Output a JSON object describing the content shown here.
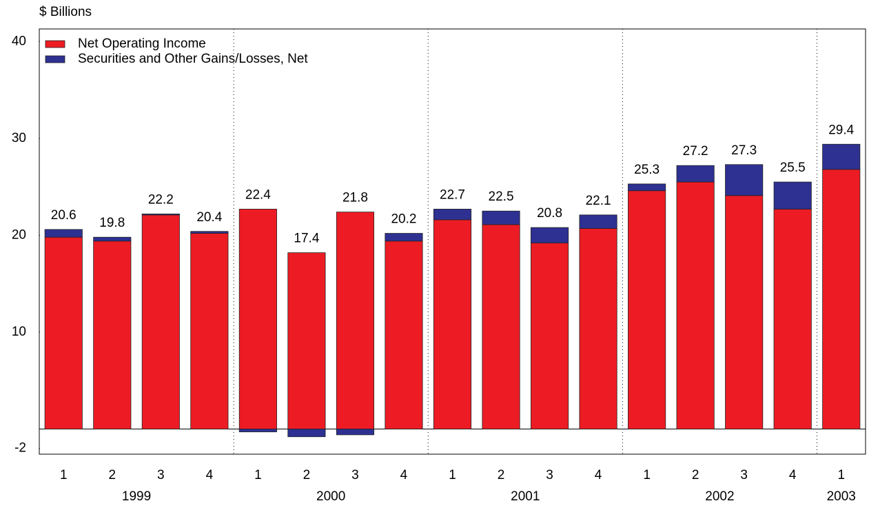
{
  "chart_data": {
    "type": "stacked-bar",
    "y_label": "$ Billions",
    "groups": [
      {
        "name": "1999",
        "categories": [
          "1",
          "2",
          "3",
          "4"
        ]
      },
      {
        "name": "2000",
        "categories": [
          "1",
          "2",
          "3",
          "4"
        ]
      },
      {
        "name": "2001",
        "categories": [
          "1",
          "2",
          "3",
          "4"
        ]
      },
      {
        "name": "2002",
        "categories": [
          "1",
          "2",
          "3",
          "4"
        ]
      },
      {
        "name": "2003",
        "categories": [
          "1"
        ]
      }
    ],
    "series": [
      {
        "name": "Net Operating Income",
        "color": "#ed1c24",
        "values": [
          19.8,
          19.4,
          22.1,
          20.2,
          22.7,
          18.2,
          22.4,
          19.4,
          21.6,
          21.1,
          19.2,
          20.7,
          24.6,
          25.5,
          24.1,
          22.7,
          26.8
        ]
      },
      {
        "name": "Securities and Other Gains/Losses, Net",
        "color": "#2e3192",
        "values": [
          0.8,
          0.4,
          0.1,
          0.2,
          -0.3,
          -0.8,
          -0.6,
          0.8,
          1.1,
          1.4,
          1.6,
          1.4,
          0.7,
          1.7,
          3.2,
          2.8,
          2.6
        ]
      }
    ],
    "totals": [
      20.6,
      19.8,
      22.2,
      20.4,
      22.4,
      17.4,
      21.8,
      20.2,
      22.7,
      22.5,
      20.8,
      22.1,
      25.3,
      27.2,
      27.3,
      25.5,
      29.4
    ],
    "ylim": [
      -2.6,
      41.3
    ],
    "yticks": [
      -2,
      10,
      20,
      30,
      40
    ],
    "legend": "top-left"
  }
}
